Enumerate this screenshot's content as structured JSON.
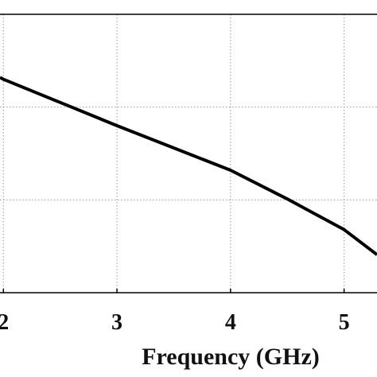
{
  "chart_data": {
    "type": "line",
    "x_label": "Frequency (GHz)",
    "x": [
      1.97,
      2,
      2.5,
      3,
      3.5,
      4,
      4.5,
      5,
      5.29
    ],
    "series": [
      {
        "color": "#000000",
        "values": [
          2.32,
          2.3,
          2.05,
          1.8,
          1.56,
          1.32,
          1.01,
          0.68,
          0.41
        ]
      }
    ],
    "xlim": [
      1.97,
      5.29
    ],
    "xticks": [
      2,
      3,
      4,
      5
    ],
    "ylim": [
      0,
      3
    ],
    "ygrid": [
      1,
      2
    ],
    "grid": true
  }
}
